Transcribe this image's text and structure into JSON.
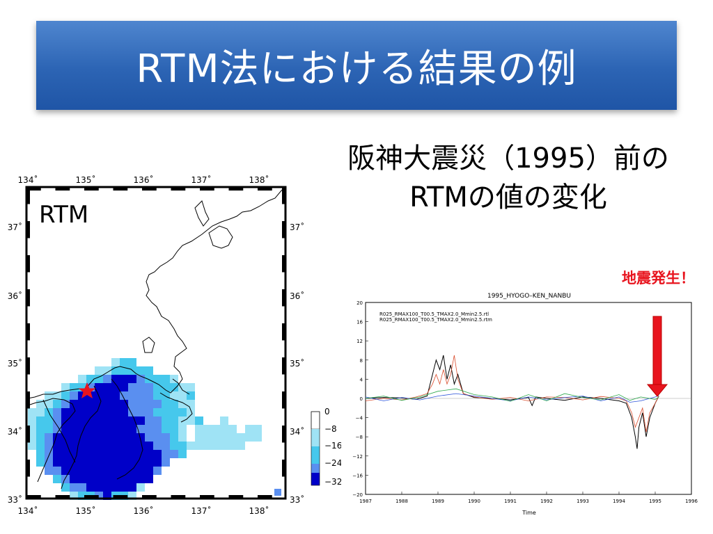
{
  "slide": {
    "title": "RTM法における結果の例",
    "subtitle_line1": "阪神大震災（1995）前の",
    "subtitle_line2": "RTMの値の変化",
    "annotation": "地震発生！",
    "annotation_color": "#e8141e"
  },
  "map": {
    "label": "RTM",
    "lon_ticks": [
      "134˚",
      "135˚",
      "136˚",
      "137˚",
      "138˚"
    ],
    "lat_ticks": [
      "33˚",
      "34˚",
      "35˚",
      "36˚",
      "37˚"
    ],
    "colorbar_ticks": [
      "0",
      "−8",
      "−16",
      "−24",
      "−32"
    ],
    "colors": [
      "#ffffff",
      "#9fe3f5",
      "#46c8ec",
      "#5a8ff0",
      "#0000c8"
    ],
    "epicenter_marker": "star-icon",
    "epicenter_color": "#e8141e"
  },
  "chart_data": {
    "type": "line",
    "title": "1995_HYOGO–KEN_NANBU",
    "xlabel": "Time",
    "ylabel": "",
    "xlim": [
      1987,
      1996
    ],
    "ylim": [
      -20,
      20
    ],
    "x_ticks": [
      "1987",
      "1988",
      "1989",
      "1990",
      "1991",
      "1992",
      "1993",
      "1994",
      "1995",
      "1996"
    ],
    "y_ticks": [
      "20",
      "16",
      "12",
      "8",
      "4",
      "0",
      "−4",
      "−8",
      "−12",
      "−16",
      "−20"
    ],
    "legend": [
      "R025_RMAX100_T00.5_TMAX2.0_Mmin2.5.rtl",
      "R025_RMAX100_T00.5_TMAX2.0_Mmin2.5.rtm"
    ],
    "series": [
      {
        "color": "#000000",
        "x": [
          1987,
          1987.5,
          1988,
          1988.4,
          1988.7,
          1988.85,
          1988.95,
          1989.05,
          1989.15,
          1989.25,
          1989.35,
          1989.45,
          1989.55,
          1989.7,
          1990,
          1990.5,
          1991,
          1991.5,
          1991.6,
          1991.7,
          1992,
          1992.5,
          1993,
          1993.5,
          1994,
          1994.2,
          1994.35,
          1994.45,
          1994.5,
          1994.55,
          1994.65,
          1994.75,
          1994.85,
          1995,
          1995.1
        ],
        "y": [
          0,
          0.2,
          0.1,
          -0.2,
          0.5,
          5,
          8,
          6,
          9,
          4,
          7,
          3,
          5,
          1,
          0.2,
          0,
          -0.3,
          0.2,
          -1.5,
          0.3,
          0,
          -0.4,
          0.3,
          0,
          -0.5,
          -1,
          -4,
          -8,
          -10.5,
          -6,
          -3,
          -8,
          -4,
          -1,
          0.5
        ]
      },
      {
        "color": "#d94a2a",
        "x": [
          1987,
          1987.5,
          1988,
          1988.4,
          1988.7,
          1988.85,
          1988.95,
          1989.05,
          1989.15,
          1989.25,
          1989.35,
          1989.45,
          1989.55,
          1989.7,
          1990,
          1990.5,
          1991,
          1991.5,
          1992,
          1992.5,
          1993,
          1993.5,
          1994,
          1994.2,
          1994.35,
          1994.45,
          1994.55,
          1994.65,
          1994.75,
          1994.85,
          1995,
          1995.1
        ],
        "y": [
          -0.5,
          0,
          -0.3,
          0.3,
          1,
          3,
          5,
          3,
          6,
          3,
          5,
          9,
          4,
          1,
          0.3,
          -0.2,
          0.2,
          -0.5,
          0.3,
          0.2,
          -0.3,
          0.4,
          0,
          -0.5,
          -3,
          -6,
          -4,
          -2,
          -7,
          -3,
          -1,
          0.5
        ]
      },
      {
        "color": "#2a52d9",
        "x": [
          1987,
          1987.5,
          1988,
          1988.5,
          1989,
          1989.5,
          1990,
          1990.5,
          1991,
          1991.5,
          1992,
          1992.5,
          1993,
          1993.5,
          1994,
          1994.3,
          1994.6,
          1995,
          1995.1
        ],
        "y": [
          0.3,
          -0.5,
          0.2,
          -0.3,
          0.5,
          1,
          0.5,
          0,
          -0.5,
          0.3,
          -0.3,
          0.2,
          0.5,
          -0.5,
          0.3,
          -0.8,
          -0.5,
          0.3,
          0.6
        ]
      },
      {
        "color": "#2aa84a",
        "x": [
          1987,
          1987.5,
          1988,
          1988.5,
          1989,
          1989.5,
          1990,
          1990.5,
          1991,
          1991.5,
          1992,
          1992.5,
          1993,
          1993.5,
          1994,
          1994.3,
          1994.6,
          1995,
          1995.1
        ],
        "y": [
          0,
          0.5,
          -0.4,
          0.3,
          1.5,
          2,
          0.8,
          0.3,
          -0.6,
          0.8,
          -0.5,
          1,
          0.2,
          -0.3,
          0.8,
          -0.4,
          0.3,
          -0.2,
          0.3
        ]
      }
    ]
  }
}
